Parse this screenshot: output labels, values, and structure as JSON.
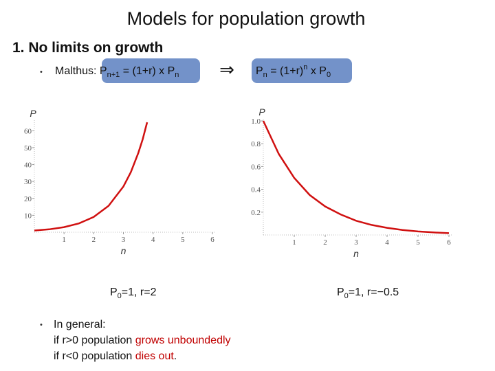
{
  "title": "Models for population growth",
  "heading": "1. No limits on growth",
  "formula": {
    "left": [
      "Malthus: P",
      "n+1",
      " = (1+r) x P",
      "n"
    ],
    "arrow": "⇒",
    "right": [
      "P",
      "n",
      " = (1+r)",
      "n",
      " x P",
      "0"
    ]
  },
  "chart_data": [
    {
      "type": "line",
      "x_label": "n",
      "y_label": "P",
      "color": "#d01010",
      "x": [
        0,
        0.5,
        1,
        1.5,
        2,
        2.5,
        3,
        3.25,
        3.5,
        3.65,
        3.8
      ],
      "values": [
        1,
        1.7,
        3,
        5.2,
        9,
        15.6,
        27,
        35.5,
        46.8,
        55,
        65
      ],
      "xlim": [
        0,
        6
      ],
      "xticks": [
        1,
        2,
        3,
        4,
        5,
        6
      ],
      "ylim": [
        0,
        65
      ],
      "yticks": [
        10,
        20,
        30,
        40,
        50,
        60
      ],
      "caption": [
        "P",
        "0",
        "=1, r=2"
      ]
    },
    {
      "type": "line",
      "x_label": "n",
      "y_label": "P",
      "color": "#d01010",
      "x": [
        0,
        0.5,
        1,
        1.5,
        2,
        2.5,
        3,
        3.5,
        4,
        4.5,
        5,
        5.5,
        6
      ],
      "values": [
        1,
        0.71,
        0.5,
        0.35,
        0.25,
        0.18,
        0.125,
        0.088,
        0.0625,
        0.044,
        0.031,
        0.022,
        0.0156
      ],
      "xlim": [
        0,
        6
      ],
      "xticks": [
        1,
        2,
        3,
        4,
        5,
        6
      ],
      "ylim": [
        0,
        1
      ],
      "yticks": [
        {
          "value": 1,
          "label": "1.0"
        },
        0.8,
        0.6,
        0.4,
        0.2
      ],
      "caption": [
        "P",
        "0",
        "=1, r=−0.5"
      ]
    }
  ],
  "bullets": {
    "intro": "In general:",
    "line1": [
      "if r>0 population ",
      "grows unboundedly"
    ],
    "line2": [
      "if r<0 population ",
      "dies out",
      "."
    ]
  }
}
